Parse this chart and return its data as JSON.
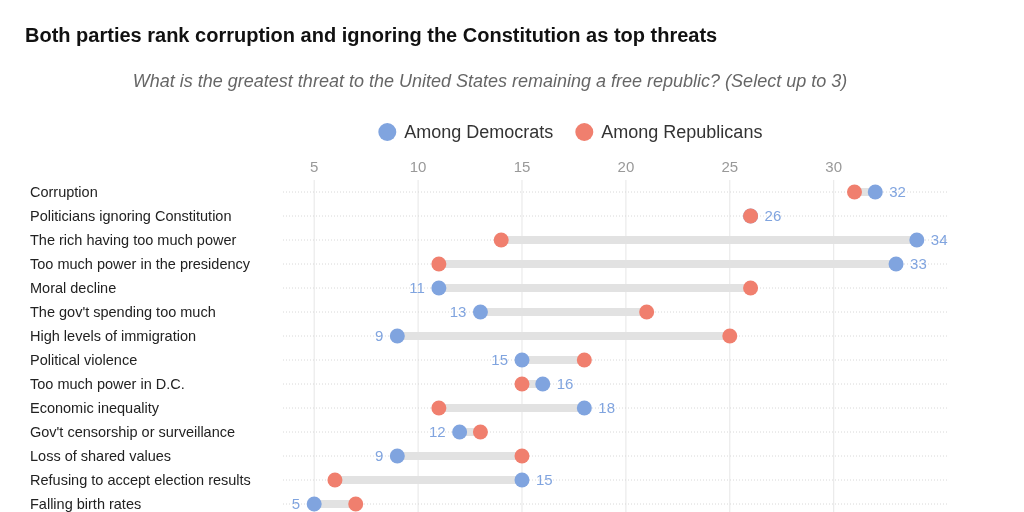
{
  "chart_data": {
    "type": "scatter",
    "orientation": "horizontal",
    "title": "Both parties rank corruption and ignoring the Constitution as top threats",
    "subtitle": "What is the greatest threat to the United States remaining a free republic? (Select up to 3)",
    "categories": [
      "Corruption",
      "Politicians ignoring Constitution",
      "The rich having too much power",
      "Too much power in the presidency",
      "Moral decline",
      "The gov't spending too much",
      "High levels of immigration",
      "Political violence",
      "Too much power in D.C.",
      "Economic inequality",
      "Gov't censorship or surveillance",
      "Loss of shared values",
      "Refusing to accept election results",
      "Falling birth rates"
    ],
    "series": [
      {
        "name": "Among Democrats",
        "color": "#80a4df",
        "values": [
          32,
          26,
          34,
          33,
          11,
          13,
          9,
          15,
          16,
          18,
          12,
          9,
          15,
          5
        ],
        "value_labels": [
          "32",
          "26",
          "34",
          "33",
          "11",
          "13",
          "9",
          "15",
          "16",
          "18",
          "12",
          "9",
          "15",
          "5"
        ]
      },
      {
        "name": "Among Republicans",
        "color": "#f07f6e",
        "values": [
          31,
          26,
          14,
          11,
          26,
          21,
          25,
          18,
          15,
          11,
          13,
          15,
          6,
          7
        ]
      }
    ],
    "xlim": [
      3.5,
      35.5
    ],
    "xticks": [
      5,
      10,
      15,
      20,
      25,
      30
    ],
    "grid": true,
    "legend": "top",
    "marker": "circle"
  }
}
